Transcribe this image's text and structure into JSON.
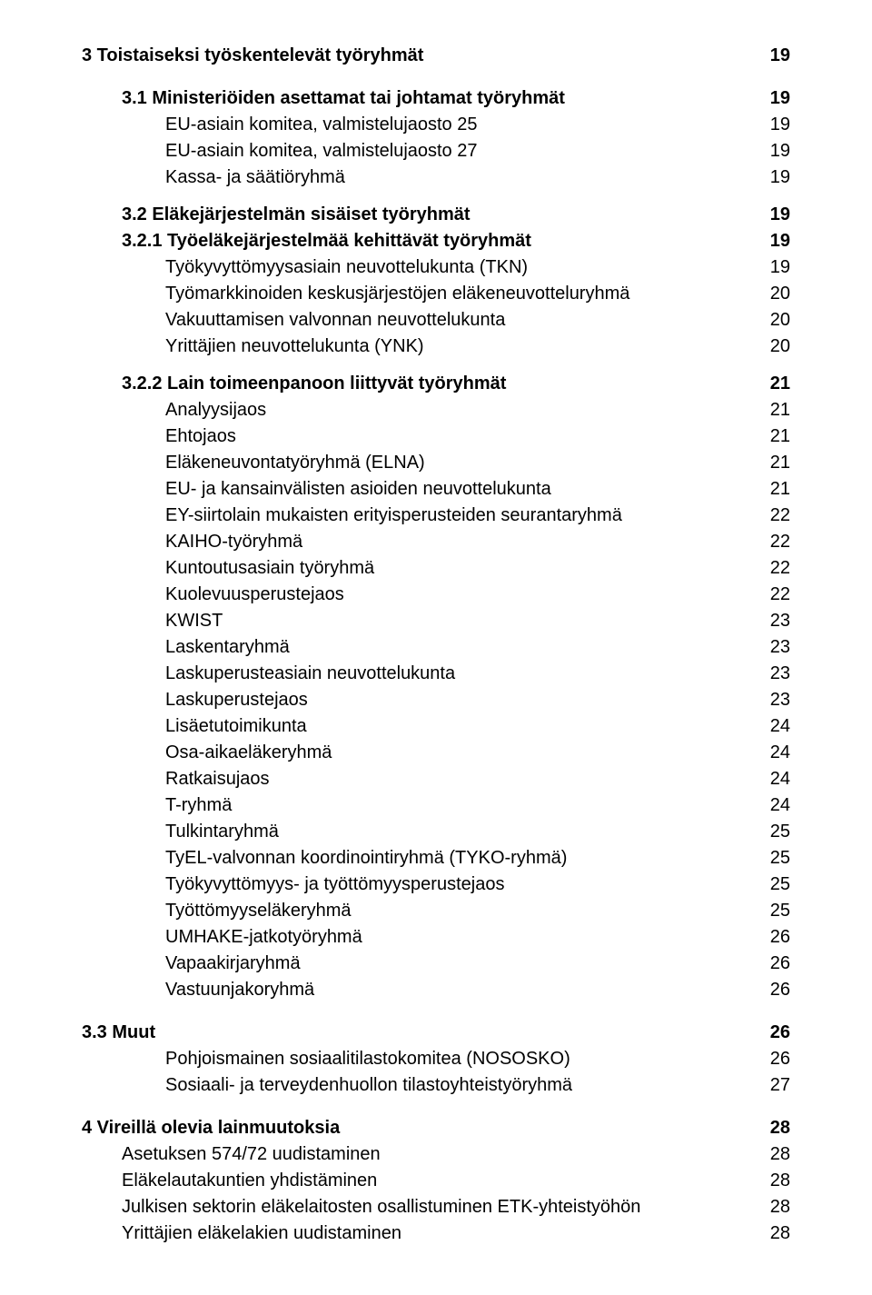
{
  "toc": [
    {
      "level": "lvl0",
      "label": "3   Toistaiseksi työskentelevät työryhmät",
      "page": "19"
    },
    {
      "level": "gap"
    },
    {
      "level": "lvl1",
      "label": "3.1 Ministeriöiden asettamat tai johtamat työryhmät",
      "page": "19"
    },
    {
      "level": "lvl2",
      "label": "EU-asiain komitea, valmistelujaosto 25",
      "page": "19"
    },
    {
      "level": "lvl2",
      "label": "EU-asiain komitea, valmistelujaosto 27",
      "page": "19"
    },
    {
      "level": "lvl2",
      "label": "Kassa- ja säätiöryhmä",
      "page": "19"
    },
    {
      "level": "small-gap"
    },
    {
      "level": "lvl1",
      "label": "3.2 Eläkejärjestelmän sisäiset työryhmät",
      "page": "19"
    },
    {
      "level": "lvl1",
      "label": "3.2.1 Työeläkejärjestelmää kehittävät työryhmät",
      "page": "19"
    },
    {
      "level": "lvl2",
      "label": "Työkyvyttömyysasiain neuvottelukunta (TKN)",
      "page": "19"
    },
    {
      "level": "lvl2",
      "label": "Työmarkkinoiden keskusjärjestöjen eläkeneuvotteluryhmä",
      "page": "20"
    },
    {
      "level": "lvl2",
      "label": "Vakuuttamisen valvonnan neuvottelukunta",
      "page": "20"
    },
    {
      "level": "lvl2",
      "label": "Yrittäjien neuvottelukunta (YNK)",
      "page": "20"
    },
    {
      "level": "small-gap"
    },
    {
      "level": "lvl1",
      "label": "3.2.2 Lain toimeenpanoon liittyvät työryhmät",
      "page": "21"
    },
    {
      "level": "lvl2",
      "label": "Analyysijaos",
      "page": "21"
    },
    {
      "level": "lvl2",
      "label": "Ehtojaos",
      "page": "21"
    },
    {
      "level": "lvl2",
      "label": "Eläkeneuvontatyöryhmä (ELNA)",
      "page": "21"
    },
    {
      "level": "lvl2",
      "label": "EU- ja kansainvälisten asioiden neuvottelukunta",
      "page": "21"
    },
    {
      "level": "lvl2",
      "label": "EY-siirtolain mukaisten erityisperusteiden seurantaryhmä",
      "page": "22"
    },
    {
      "level": "lvl2",
      "label": "KAIHO-työryhmä",
      "page": "22"
    },
    {
      "level": "lvl2",
      "label": "Kuntoutusasiain työryhmä",
      "page": "22"
    },
    {
      "level": "lvl2",
      "label": "Kuolevuusperustejaos",
      "page": "22"
    },
    {
      "level": "lvl2",
      "label": "KWIST",
      "page": "23"
    },
    {
      "level": "lvl2",
      "label": "Laskentaryhmä",
      "page": "23"
    },
    {
      "level": "lvl2",
      "label": "Laskuperusteasiain neuvottelukunta",
      "page": "23"
    },
    {
      "level": "lvl2",
      "label": "Laskuperustejaos",
      "page": "23"
    },
    {
      "level": "lvl2",
      "label": "Lisäetutoimikunta",
      "page": "24"
    },
    {
      "level": "lvl2",
      "label": "Osa-aikaeläkeryhmä",
      "page": "24"
    },
    {
      "level": "lvl2",
      "label": "Ratkaisujaos",
      "page": "24"
    },
    {
      "level": "lvl2",
      "label": "T-ryhmä",
      "page": "24"
    },
    {
      "level": "lvl2",
      "label": "Tulkintaryhmä",
      "page": "25"
    },
    {
      "level": "lvl2",
      "label": "TyEL-valvonnan koordinointiryhmä (TYKO-ryhmä)",
      "page": "25"
    },
    {
      "level": "lvl2",
      "label": "Työkyvyttömyys- ja työttömyysperustejaos",
      "page": "25"
    },
    {
      "level": "lvl2",
      "label": "Työttömyyseläkeryhmä",
      "page": "25"
    },
    {
      "level": "lvl2",
      "label": "UMHAKE-jatkotyöryhmä",
      "page": "26"
    },
    {
      "level": "lvl2",
      "label": "Vapaakirjaryhmä",
      "page": "26"
    },
    {
      "level": "lvl2",
      "label": "Vastuunjakoryhmä",
      "page": "26"
    },
    {
      "level": "gap"
    },
    {
      "level": "lvl1b",
      "label": "3.3 Muut",
      "page": "26"
    },
    {
      "level": "lvl2",
      "label": "Pohjoismainen sosiaalitilastokomitea (NOSOSKO)",
      "page": "26"
    },
    {
      "level": "lvl2",
      "label": "Sosiaali- ja terveydenhuollon tilastoyhteistyöryhmä",
      "page": "27"
    },
    {
      "level": "gap"
    },
    {
      "level": "lvl0",
      "label": "4   Vireillä olevia lainmuutoksia",
      "page": "28"
    },
    {
      "level": "lvl2b",
      "label": "Asetuksen 574/72 uudistaminen",
      "page": "28"
    },
    {
      "level": "lvl2b",
      "label": "Eläkelautakuntien yhdistäminen",
      "page": "28"
    },
    {
      "level": "lvl2b",
      "label": "Julkisen sektorin eläkelaitosten osallistuminen ETK-yhteistyöhön",
      "page": "28"
    },
    {
      "level": "lvl2b",
      "label": "Yrittäjien eläkelakien uudistaminen",
      "page": "28"
    }
  ]
}
